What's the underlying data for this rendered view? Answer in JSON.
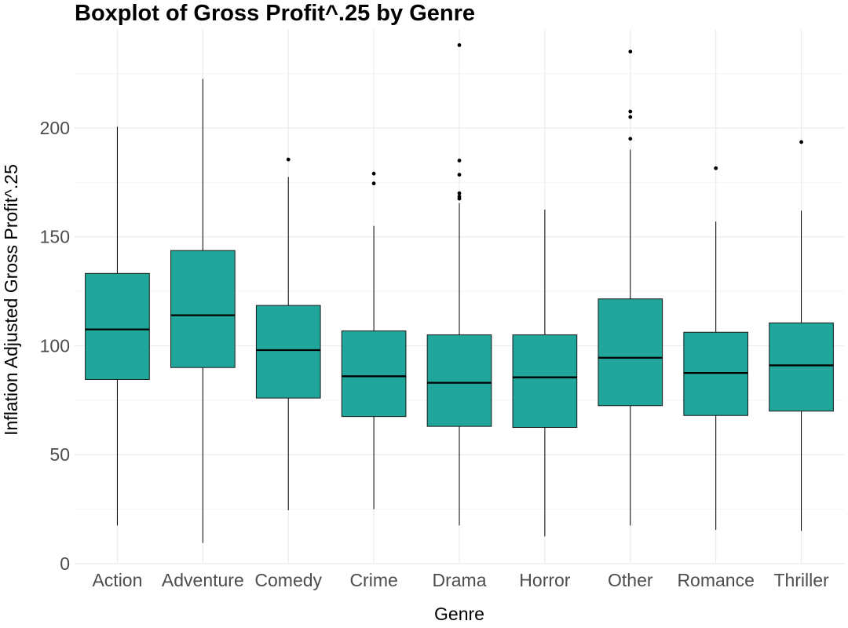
{
  "chart_data": {
    "type": "boxplot",
    "title": "Boxplot of Gross Profit^.25 by Genre",
    "xlabel": "Genre",
    "ylabel": "Inflation Adjusted Gross Profit^.25",
    "ylim": [
      0,
      245
    ],
    "yticks": [
      0,
      50,
      100,
      150,
      200
    ],
    "grid": true,
    "box_color": "#20a69a",
    "categories": [
      "Action",
      "Adventure",
      "Comedy",
      "Crime",
      "Drama",
      "Horror",
      "Other",
      "Romance",
      "Thriller"
    ],
    "boxes": [
      {
        "category": "Action",
        "whisker_low": 17.5,
        "q1": 84.5,
        "median": 107.5,
        "q3": 133.2,
        "whisker_high": 200.5,
        "outliers": []
      },
      {
        "category": "Adventure",
        "whisker_low": 9.5,
        "q1": 90.0,
        "median": 114.0,
        "q3": 143.7,
        "whisker_high": 222.5,
        "outliers": []
      },
      {
        "category": "Comedy",
        "whisker_low": 24.5,
        "q1": 76.0,
        "median": 98.0,
        "q3": 118.5,
        "whisker_high": 177.5,
        "outliers": [
          185.5
        ]
      },
      {
        "category": "Crime",
        "whisker_low": 25.0,
        "q1": 67.5,
        "median": 86.0,
        "q3": 106.8,
        "whisker_high": 155.0,
        "outliers": [
          174.5,
          179.0
        ]
      },
      {
        "category": "Drama",
        "whisker_low": 17.5,
        "q1": 63.0,
        "median": 83.0,
        "q3": 105.0,
        "whisker_high": 165.5,
        "outliers": [
          167.5,
          168.5,
          170.0,
          178.5,
          185.0,
          238.0
        ]
      },
      {
        "category": "Horror",
        "whisker_low": 12.5,
        "q1": 62.5,
        "median": 85.5,
        "q3": 105.0,
        "whisker_high": 162.5,
        "outliers": []
      },
      {
        "category": "Other",
        "whisker_low": 17.5,
        "q1": 72.5,
        "median": 94.5,
        "q3": 121.5,
        "whisker_high": 190.0,
        "outliers": [
          195.0,
          205.0,
          207.5,
          235.0
        ]
      },
      {
        "category": "Romance",
        "whisker_low": 15.5,
        "q1": 68.0,
        "median": 87.5,
        "q3": 106.2,
        "whisker_high": 157.0,
        "outliers": [
          181.5
        ]
      },
      {
        "category": "Thriller",
        "whisker_low": 15.0,
        "q1": 70.0,
        "median": 91.0,
        "q3": 110.5,
        "whisker_high": 162.0,
        "outliers": [
          193.5
        ]
      }
    ]
  }
}
